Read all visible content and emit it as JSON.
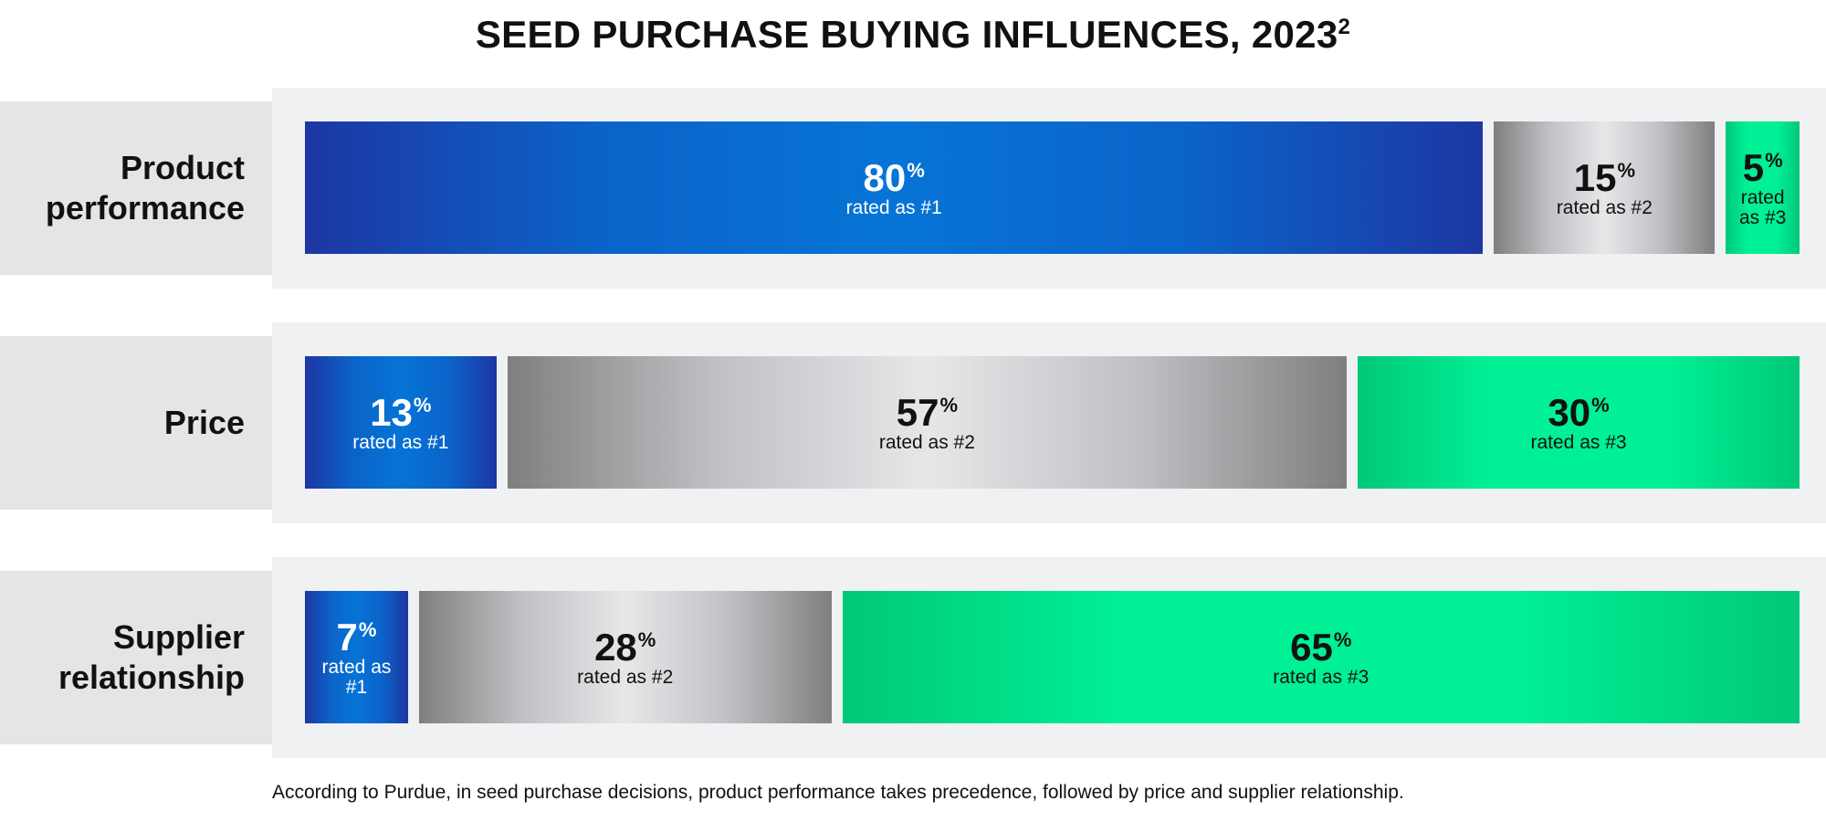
{
  "title": "SEED PURCHASE BUYING INFLUENCES, 2023",
  "title_superscript": "2",
  "footnote": "According to Purdue, in seed purchase decisions, product performance takes precedence, followed by price and supplier relationship.",
  "colors": {
    "rank1": "#0674d6",
    "rank2": "#d6d7da",
    "rank3": "#00f095",
    "panel": "#f0f1f3",
    "label_panel": "#e4e5e7"
  },
  "chart_data": {
    "type": "bar",
    "orientation": "horizontal",
    "stacked": true,
    "unit": "%",
    "categories": [
      "Product\nperformance",
      "Price",
      "Supplier\nrelationship"
    ],
    "series": [
      {
        "name": "rated as #1",
        "values": [
          80,
          13,
          7
        ]
      },
      {
        "name": "rated as #2",
        "values": [
          15,
          57,
          28
        ]
      },
      {
        "name": "rated as #3",
        "values": [
          5,
          30,
          65
        ]
      }
    ],
    "segment_labels": [
      [
        "rated as #1",
        "rated as #2",
        "rated\nas #3"
      ],
      [
        "rated as #1",
        "rated as #2",
        "rated as #3"
      ],
      [
        "rated as\n#1",
        "rated as #2",
        "rated as #3"
      ]
    ]
  }
}
